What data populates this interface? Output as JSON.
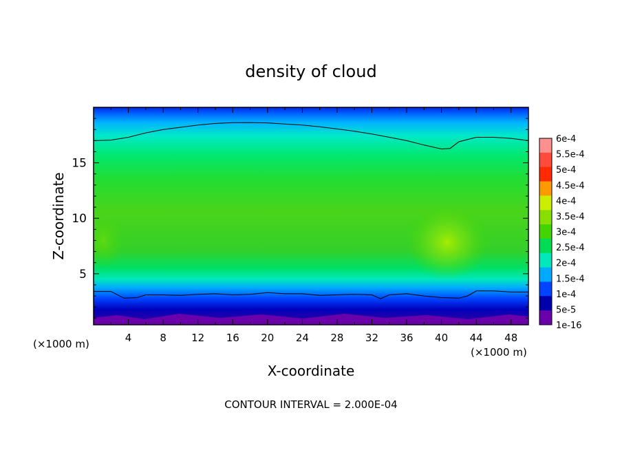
{
  "chart_data": {
    "type": "heatmap",
    "title": "density of cloud",
    "xlabel": "X-coordinate",
    "ylabel": "Z-coordinate",
    "x_unit": "(×1000 m)",
    "y_unit": "(×1000 m)",
    "footer": "CONTOUR INTERVAL = 2.000E-04",
    "xlim": [
      0,
      50
    ],
    "ylim": [
      0.4,
      20
    ],
    "x_ticks": [
      4,
      8,
      12,
      16,
      20,
      24,
      28,
      32,
      36,
      40,
      44,
      48
    ],
    "y_ticks": [
      5,
      10,
      15
    ],
    "colorbar": {
      "labels": [
        "6e-4",
        "5.5e-4",
        "5e-4",
        "4.5e-4",
        "4e-4",
        "3.5e-4",
        "3e-4",
        "2.5e-4",
        "2e-4",
        "1.5e-4",
        "1e-4",
        "5e-5",
        "1e-16"
      ],
      "levels": [
        0.0006,
        0.00055,
        0.0005,
        0.00045,
        0.0004,
        0.00035,
        0.0003,
        0.00025,
        0.0002,
        0.00015,
        0.0001,
        5e-05,
        1e-16
      ],
      "colors": [
        "#ff9090",
        "#ff4a3c",
        "#ff2a00",
        "#ff9900",
        "#ccee00",
        "#88e000",
        "#44d400",
        "#00dd55",
        "#00e8bb",
        "#00aaff",
        "#0044ff",
        "#0000aa",
        "#6a00aa"
      ]
    },
    "contour_level": 0.0002,
    "contour_upper": {
      "x": [
        0,
        2,
        4,
        6,
        8,
        10,
        12,
        14,
        16,
        18,
        20,
        22,
        24,
        26,
        28,
        30,
        32,
        34,
        36,
        38,
        40,
        41,
        42,
        44,
        46,
        48,
        50
      ],
      "z": [
        17.0,
        17.05,
        17.3,
        17.7,
        18.0,
        18.2,
        18.4,
        18.55,
        18.62,
        18.63,
        18.6,
        18.5,
        18.4,
        18.25,
        18.05,
        17.85,
        17.6,
        17.3,
        17.0,
        16.6,
        16.25,
        16.3,
        16.9,
        17.3,
        17.3,
        17.2,
        17.0
      ]
    },
    "contour_lower": {
      "x": [
        0,
        2,
        3.5,
        5,
        6,
        8,
        10,
        12,
        14,
        16,
        18,
        20,
        22,
        24,
        26,
        28,
        30,
        32,
        33,
        34,
        36,
        38,
        40,
        42,
        43,
        44,
        46,
        48,
        50
      ],
      "z": [
        3.4,
        3.4,
        2.8,
        2.85,
        3.1,
        3.1,
        3.05,
        3.15,
        3.2,
        3.1,
        3.15,
        3.3,
        3.2,
        3.2,
        3.05,
        3.1,
        3.15,
        3.1,
        2.75,
        3.1,
        3.2,
        3.0,
        2.85,
        2.8,
        3.0,
        3.45,
        3.45,
        3.35,
        3.35
      ]
    }
  }
}
